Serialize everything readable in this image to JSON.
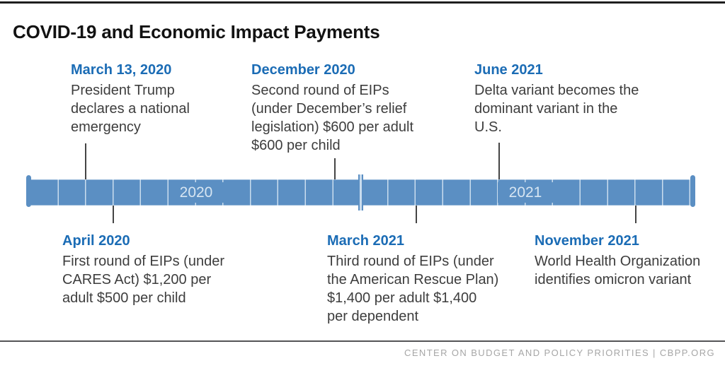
{
  "page": {
    "title": "COVID-19 and Economic Impact Payments"
  },
  "timeline": {
    "type": "timeline",
    "years": [
      {
        "label": "2020",
        "months": 12
      },
      {
        "label": "2021",
        "months": 12
      }
    ],
    "events": [
      {
        "date": "March 13, 2020",
        "side": "above",
        "description": "President Trump\ndeclares a national\nemergency"
      },
      {
        "date": "April 2020",
        "side": "below",
        "description": "First round of EIPs (under\nCARES Act) $1,200 per\nadult $500 per child"
      },
      {
        "date": "December 2020",
        "side": "above",
        "description": "Second round of EIPs\n(under December’s relief\nlegislation) $600 per adult\n$600 per child"
      },
      {
        "date": "March 2021",
        "side": "below",
        "description": "Third round of EIPs (under\nthe American Rescue Plan)\n$1,400 per adult $1,400\nper dependent"
      },
      {
        "date": "June 2021",
        "side": "above",
        "description": "Delta variant becomes the\ndominant variant in the\nU.S."
      },
      {
        "date": "November 2021",
        "side": "below",
        "description": "World Health Organization\nidentifies omicron variant"
      }
    ],
    "colors": {
      "bar_blue": "#5b8fc3",
      "divider_light": "#c9dcee",
      "heading_blue": "#1b6cb5",
      "body_text": "#3d3d3d",
      "year_label_text": "#d6e5f2",
      "pointer_line": "#454545"
    }
  },
  "footer": {
    "credit": "CENTER ON BUDGET AND POLICY PRIORITIES | CBPP.ORG"
  }
}
